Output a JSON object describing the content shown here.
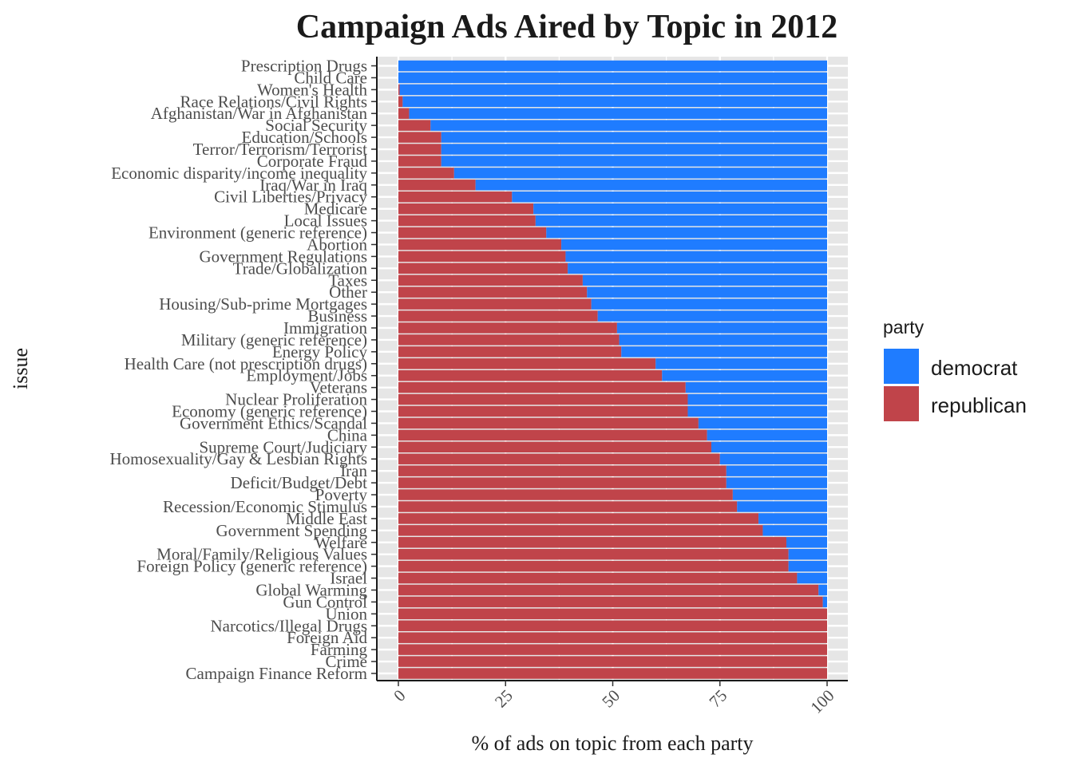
{
  "chart_data": {
    "type": "bar",
    "orientation": "horizontal",
    "stacked": true,
    "title": "Campaign Ads Aired by Topic in 2012",
    "xlabel": "% of ads on topic from each party",
    "ylabel": "issue",
    "xlim": [
      0,
      100
    ],
    "x_ticks": [
      "0",
      "25",
      "50",
      "75",
      "100"
    ],
    "x_tick_values": [
      0,
      25,
      50,
      75,
      100
    ],
    "grid": true,
    "legend": {
      "title": "party",
      "placement": "right"
    },
    "colors": {
      "democrat": "#1f7cff",
      "republican": "#c0444a",
      "panel": "#e6e6e6",
      "grid": "#ffffff"
    },
    "categories": [
      "Prescription Drugs",
      "Child Care",
      "Women's Health",
      "Race Relations/Civil Rights",
      "Afghanistan/War in Afghanistan",
      "Social Security",
      "Education/Schools",
      "Terror/Terrorism/Terrorist",
      "Corporate Fraud",
      "Economic disparity/income inequality",
      "Iraq/War in Iraq",
      "Civil Liberties/Privacy",
      "Medicare",
      "Local Issues",
      "Environment (generic reference)",
      "Abortion",
      "Government Regulations",
      "Trade/Globalization",
      "Taxes",
      "Other",
      "Housing/Sub-prime Mortgages",
      "Business",
      "Immigration",
      "Military (generic reference)",
      "Energy Policy",
      "Health Care (not prescription drugs)",
      "Employment/Jobs",
      "Veterans",
      "Nuclear Proliferation",
      "Economy (generic reference)",
      "Government Ethics/Scandal",
      "China",
      "Supreme Court/Judiciary",
      "Homosexuality/Gay & Lesbian Rights",
      "Iran",
      "Deficit/Budget/Debt",
      "Poverty",
      "Recession/Economic Stimulus",
      "Middle East",
      "Government Spending",
      "Welfare",
      "Moral/Family/Religious Values",
      "Foreign Policy (generic reference)",
      "Israel",
      "Global Warming",
      "Gun Control",
      "Union",
      "Narcotics/Illegal Drugs",
      "Foreign Aid",
      "Farming",
      "Crime",
      "Campaign Finance Reform"
    ],
    "series": [
      {
        "name": "republican",
        "values": [
          0,
          0,
          0.3,
          1,
          2.5,
          7.5,
          10,
          10,
          10,
          13,
          18,
          26.5,
          31.5,
          32,
          34.5,
          38,
          39,
          39.5,
          43,
          44,
          45,
          46.5,
          51,
          51.5,
          52,
          60,
          61.5,
          67,
          67.5,
          67.5,
          70,
          72,
          73,
          75,
          76.5,
          76.5,
          78,
          79,
          84,
          85,
          90.5,
          91,
          91,
          93,
          98,
          99,
          100,
          100,
          100,
          100,
          100,
          100
        ]
      },
      {
        "name": "democrat",
        "values": [
          100,
          100,
          99.7,
          99,
          97.5,
          92.5,
          90,
          90,
          90,
          87,
          82,
          73.5,
          68.5,
          68,
          65.5,
          62,
          61,
          60.5,
          57,
          56,
          55,
          53.5,
          49,
          48.5,
          48,
          40,
          38.5,
          33,
          32.5,
          32.5,
          30,
          28,
          27,
          25,
          23.5,
          23.5,
          22,
          21,
          16,
          15,
          9.5,
          9,
          9,
          7,
          2,
          1,
          0,
          0,
          0,
          0,
          0,
          0
        ]
      }
    ]
  }
}
